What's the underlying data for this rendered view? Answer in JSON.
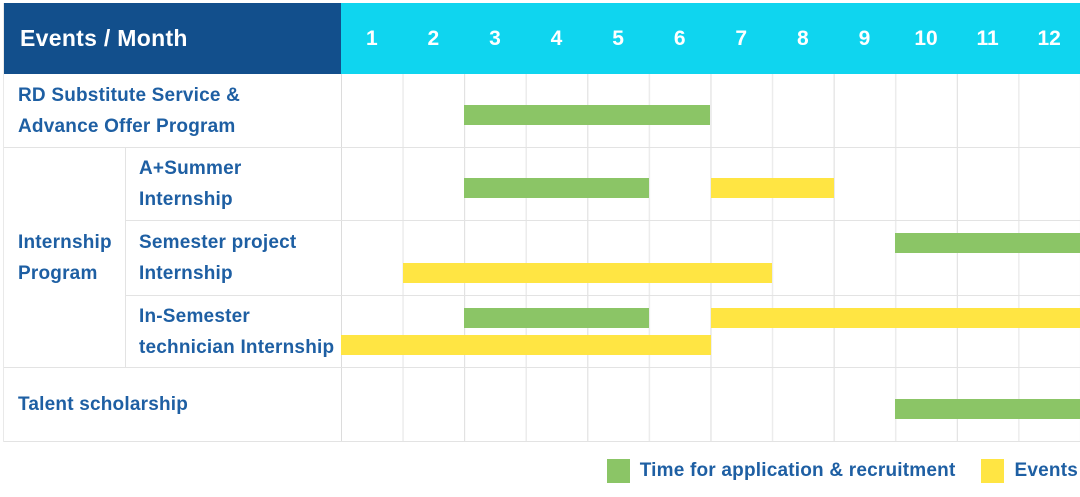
{
  "header": {
    "label": "Events / Month",
    "months": [
      "1",
      "2",
      "3",
      "4",
      "5",
      "6",
      "7",
      "8",
      "9",
      "10",
      "11",
      "12"
    ]
  },
  "group": {
    "label": "Internship\nProgram"
  },
  "rows": [
    {
      "label": "RD Substitute Service &\nAdvance Offer Program",
      "bars": [
        {
          "color": "green",
          "start": 3,
          "end": 6,
          "track": "single"
        }
      ]
    },
    {
      "label": "A+Summer\nInternship",
      "bars": [
        {
          "color": "green",
          "start": 3,
          "end": 5,
          "track": "single"
        },
        {
          "color": "yellow",
          "start": 7,
          "end": 8,
          "track": "single"
        }
      ]
    },
    {
      "label": "Semester project\nInternship",
      "bars": [
        {
          "color": "green",
          "start": 10,
          "end": 12,
          "track": "top"
        },
        {
          "color": "yellow",
          "start": 2,
          "end": 7,
          "track": "bottom"
        }
      ]
    },
    {
      "label": "In-Semester\ntechnician Internship",
      "bars": [
        {
          "color": "green",
          "start": 3,
          "end": 5,
          "track": "top"
        },
        {
          "color": "yellow",
          "start": 7,
          "end": 12,
          "track": "top"
        },
        {
          "color": "yellow",
          "start": 1,
          "end": 6,
          "track": "bottom"
        }
      ]
    },
    {
      "label": "Talent scholarship",
      "bars": [
        {
          "color": "green",
          "start": 10,
          "end": 12,
          "track": "single"
        }
      ]
    }
  ],
  "legend": [
    {
      "color": "green",
      "label": "Time for application & recruitment"
    },
    {
      "color": "yellow",
      "label": "Events"
    }
  ],
  "colors": {
    "header_blue": "#124f8c",
    "month_cyan": "#0fd5ef",
    "bar_green": "#8bc566",
    "bar_yellow": "#ffe543",
    "label_blue": "#1e5fa3"
  },
  "chart_data": {
    "type": "table",
    "subtype": "gantt",
    "title": "Events / Month",
    "columns": [
      1,
      2,
      3,
      4,
      5,
      6,
      7,
      8,
      9,
      10,
      11,
      12
    ],
    "legend_entries": [
      "Time for application & recruitment",
      "Events"
    ],
    "legend_position": "bottom-right",
    "rows": [
      {
        "event": "RD Substitute Service & Advance Offer Program",
        "group": null,
        "bars": [
          {
            "kind": "Time for application & recruitment",
            "months": [
              3,
              6
            ]
          }
        ]
      },
      {
        "event": "A+Summer Internship",
        "group": "Internship Program",
        "bars": [
          {
            "kind": "Time for application & recruitment",
            "months": [
              3,
              5
            ]
          },
          {
            "kind": "Events",
            "months": [
              7,
              8
            ]
          }
        ]
      },
      {
        "event": "Semester project Internship",
        "group": "Internship Program",
        "bars": [
          {
            "kind": "Time for application & recruitment",
            "months": [
              10,
              12
            ]
          },
          {
            "kind": "Events",
            "months": [
              2,
              7
            ]
          }
        ]
      },
      {
        "event": "In-Semester technician Internship",
        "group": "Internship Program",
        "bars": [
          {
            "kind": "Time for application & recruitment",
            "months": [
              3,
              5
            ]
          },
          {
            "kind": "Events",
            "months": [
              7,
              12
            ]
          },
          {
            "kind": "Events",
            "months": [
              1,
              6
            ]
          }
        ]
      },
      {
        "event": "Talent scholarship",
        "group": null,
        "bars": [
          {
            "kind": "Time for application & recruitment",
            "months": [
              10,
              12
            ]
          }
        ]
      }
    ]
  }
}
